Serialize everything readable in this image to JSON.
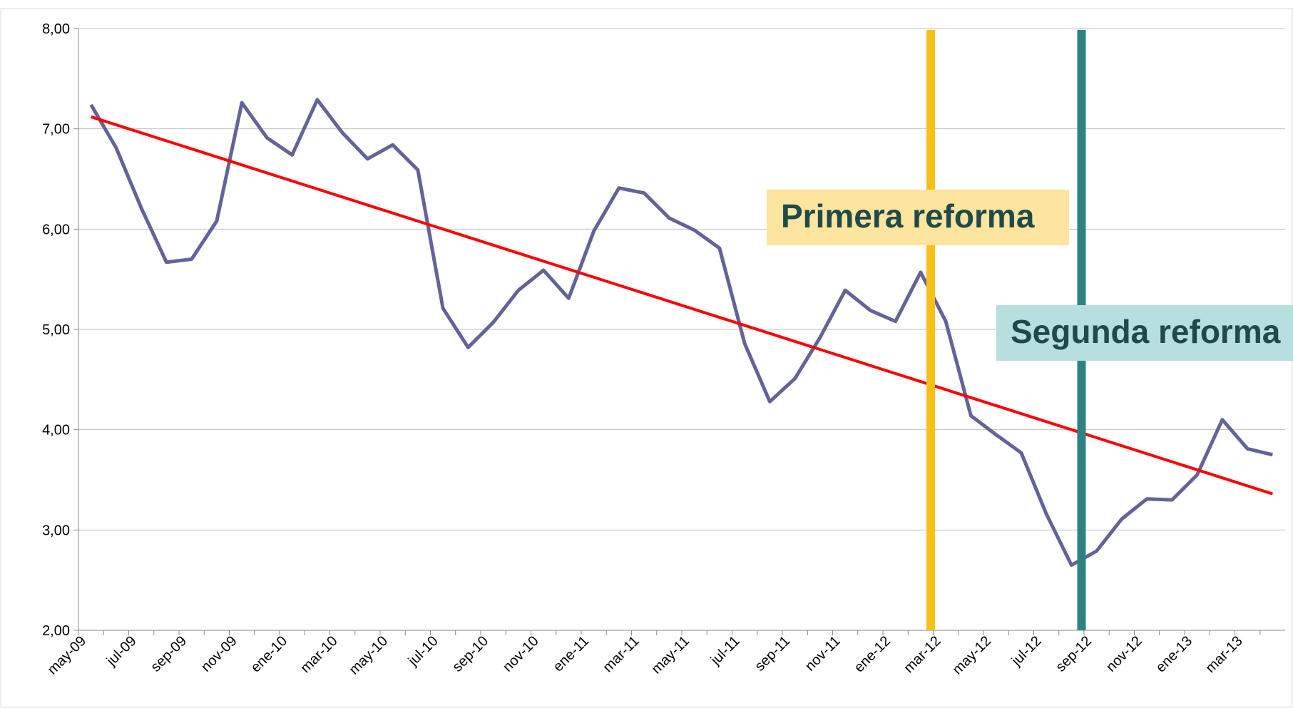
{
  "chart_data": {
    "type": "line",
    "categories": [
      "may-09",
      null,
      "jul-09",
      null,
      "sep-09",
      null,
      "nov-09",
      null,
      "ene-10",
      null,
      "mar-10",
      null,
      "may-10",
      null,
      "jul-10",
      null,
      "sep-10",
      null,
      "nov-10",
      null,
      "ene-11",
      null,
      "mar-11",
      null,
      "may-11",
      null,
      "jul-11",
      null,
      "sep-11",
      null,
      "nov-11",
      null,
      "ene-12",
      null,
      "mar-12",
      null,
      "may-12",
      null,
      "jul-12",
      null,
      "sep-12",
      null,
      "nov-12",
      null,
      "ene-13",
      null,
      "mar-13",
      null
    ],
    "series": [
      {
        "color": "#63639a",
        "values": [
          7.24,
          6.81,
          6.21,
          5.67,
          5.7,
          6.08,
          7.26,
          6.91,
          6.74,
          7.29,
          6.96,
          6.7,
          6.84,
          6.59,
          5.21,
          4.82,
          5.07,
          5.39,
          5.59,
          5.31,
          5.98,
          6.41,
          6.36,
          6.11,
          5.99,
          5.81,
          4.86,
          4.28,
          4.51,
          4.92,
          5.39,
          5.19,
          5.08,
          5.57,
          5.08,
          4.14,
          3.95,
          3.77,
          3.16,
          2.65,
          2.79,
          3.11,
          3.31,
          3.3,
          3.55,
          4.1,
          3.81,
          3.75
        ]
      }
    ],
    "trend": {
      "color": "#ff0000",
      "values": [
        7.12,
        3.36
      ]
    },
    "events": [
      {
        "label": "Primera reforma",
        "x": 33.4,
        "color": "#fbbf1c",
        "box_color": "#fde49f"
      },
      {
        "label": "Segunda reforma",
        "x": 39.4,
        "color": "#2f8282",
        "box_color": "#b7dfdf"
      }
    ],
    "ylim": [
      2,
      8
    ],
    "yticks": [
      {
        "value": 2,
        "label": "2,00"
      },
      {
        "value": 3,
        "label": "3,00"
      },
      {
        "value": 4,
        "label": "4,00"
      },
      {
        "value": 5,
        "label": "5,00"
      },
      {
        "value": 6,
        "label": "6,00"
      },
      {
        "value": 7,
        "label": "7,00"
      },
      {
        "value": 8,
        "label": "8,00"
      }
    ],
    "grid": true
  }
}
